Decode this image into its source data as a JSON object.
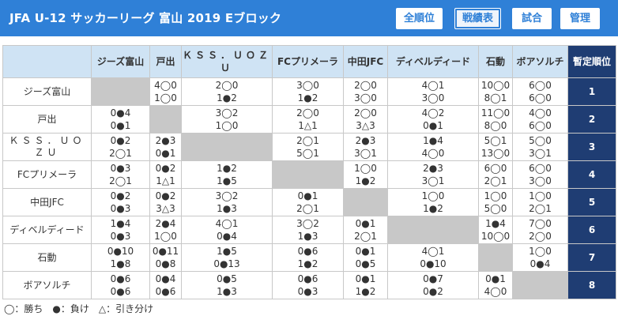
{
  "header": {
    "title": "JFA U-12 サッカーリーグ 富山 2019 Eブロック",
    "buttons": [
      {
        "label": "全順位",
        "active": false
      },
      {
        "label": "戦績表",
        "active": true
      },
      {
        "label": "試合",
        "active": false
      },
      {
        "label": "管理",
        "active": false
      }
    ]
  },
  "table": {
    "rank_header": "暫定順位",
    "columns": [
      "ジーズ富山",
      "戸出",
      "ＫＳＳ．ＵＯＺＵ",
      "FCプリメーラ",
      "中田JFC",
      "ディベルディード",
      "石動",
      "ボアソルチ"
    ],
    "rows": [
      {
        "team": "ジーズ富山",
        "rank": "1",
        "cells": [
          null,
          [
            "4◯0",
            "1◯0"
          ],
          [
            "2◯0",
            "1●2"
          ],
          [
            "3◯0",
            "1●2"
          ],
          [
            "2◯0",
            "3◯0"
          ],
          [
            "4◯1",
            "3◯0"
          ],
          [
            "10◯0",
            "8◯1"
          ],
          [
            "6◯0",
            "6◯0"
          ]
        ]
      },
      {
        "team": "戸出",
        "rank": "2",
        "cells": [
          [
            "0●4",
            "0●1"
          ],
          null,
          [
            "3◯2",
            "1◯0"
          ],
          [
            "2◯0",
            "1△1"
          ],
          [
            "2◯0",
            "3△3"
          ],
          [
            "4◯2",
            "0●1"
          ],
          [
            "11◯0",
            "8◯0"
          ],
          [
            "4◯0",
            "6◯0"
          ]
        ]
      },
      {
        "team": "ＫＳＳ．ＵＯＺＵ",
        "rank": "3",
        "cells": [
          [
            "0●2",
            "2◯1"
          ],
          [
            "2●3",
            "0●1"
          ],
          null,
          [
            "2◯1",
            "5◯1"
          ],
          [
            "2●3",
            "3◯1"
          ],
          [
            "1●4",
            "4◯0"
          ],
          [
            "5◯1",
            "13◯0"
          ],
          [
            "5◯0",
            "3◯1"
          ]
        ]
      },
      {
        "team": "FCプリメーラ",
        "rank": "4",
        "cells": [
          [
            "0●3",
            "2◯1"
          ],
          [
            "0●2",
            "1△1"
          ],
          [
            "1●2",
            "1●5"
          ],
          null,
          [
            "1◯0",
            "1●2"
          ],
          [
            "2●3",
            "3◯1"
          ],
          [
            "6◯0",
            "2◯1"
          ],
          [
            "6◯0",
            "3◯0"
          ]
        ]
      },
      {
        "team": "中田JFC",
        "rank": "5",
        "cells": [
          [
            "0●2",
            "0●3"
          ],
          [
            "0●2",
            "3△3"
          ],
          [
            "3◯2",
            "1●3"
          ],
          [
            "0●1",
            "2◯1"
          ],
          null,
          [
            "1◯0",
            "1●2"
          ],
          [
            "1◯0",
            "5◯0"
          ],
          [
            "1◯0",
            "2◯1"
          ]
        ]
      },
      {
        "team": "ディベルディード",
        "rank": "6",
        "cells": [
          [
            "1●4",
            "0●3"
          ],
          [
            "2●4",
            "1◯0"
          ],
          [
            "4◯1",
            "0●4"
          ],
          [
            "3◯2",
            "1●3"
          ],
          [
            "0●1",
            "2◯1"
          ],
          null,
          [
            "1●4",
            "10◯0"
          ],
          [
            "7◯0",
            "2◯0"
          ]
        ]
      },
      {
        "team": "石動",
        "rank": "7",
        "cells": [
          [
            "0●10",
            "1●8"
          ],
          [
            "0●11",
            "0●8"
          ],
          [
            "1●5",
            "0●13"
          ],
          [
            "0●6",
            "1●2"
          ],
          [
            "0●1",
            "0●5"
          ],
          [
            "4◯1",
            "0●10"
          ],
          null,
          [
            "1◯0",
            "0●4"
          ]
        ]
      },
      {
        "team": "ボアソルチ",
        "rank": "8",
        "cells": [
          [
            "0●6",
            "0●6"
          ],
          [
            "0●4",
            "0●6"
          ],
          [
            "0●5",
            "1●3"
          ],
          [
            "0●6",
            "0●3"
          ],
          [
            "0●1",
            "1●2"
          ],
          [
            "0●7",
            "0●2"
          ],
          [
            "0●1",
            "4◯0"
          ],
          null
        ]
      }
    ]
  },
  "legend": {
    "text": "◯：勝ち　●：負け　△：引き分け"
  }
}
